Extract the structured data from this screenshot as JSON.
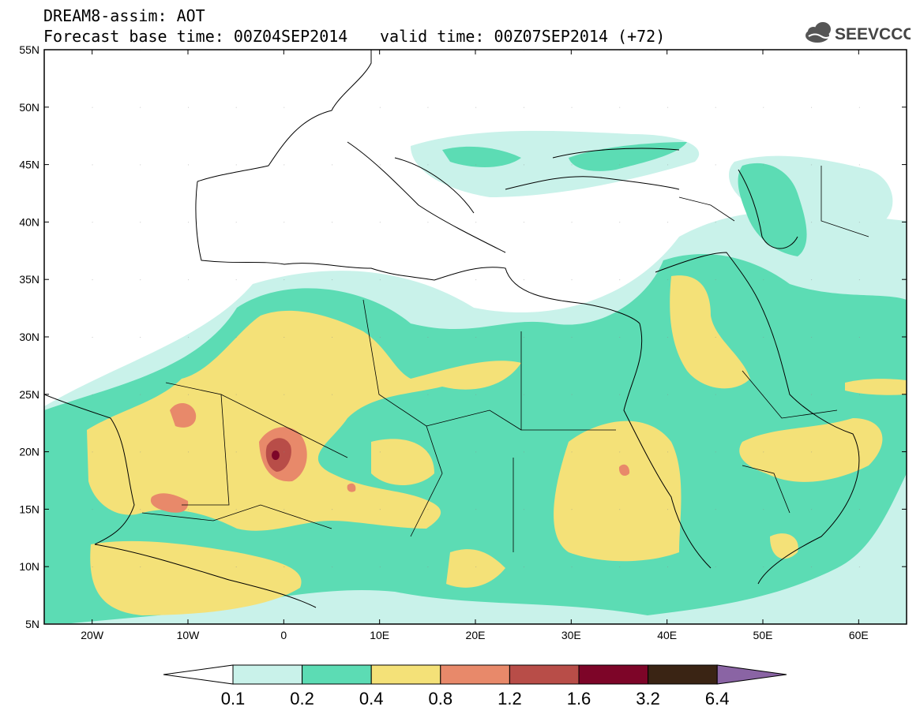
{
  "header": {
    "title": "DREAM8-assim: AOT",
    "base_time": "Forecast base time: 00Z04SEP2014",
    "valid_time": "valid time: 00Z07SEP2014 (+72)"
  },
  "logo": {
    "text": "SEEVCCC",
    "icon": "cloud-icon"
  },
  "map": {
    "region": "North Africa, Mediterranean, Middle East",
    "lon_range": [
      -25,
      65
    ],
    "lat_range": [
      5,
      55
    ],
    "lat_ticks": [
      "55N",
      "50N",
      "45N",
      "40N",
      "35N",
      "30N",
      "25N",
      "20N",
      "15N",
      "10N",
      "5N"
    ],
    "lon_ticks": [
      "20W",
      "10W",
      "0",
      "10E",
      "20E",
      "30E",
      "40E",
      "50E",
      "60E"
    ]
  },
  "colorbar": {
    "labels": [
      "0.1",
      "0.2",
      "0.4",
      "0.8",
      "1.2",
      "1.6",
      "3.2",
      "6.4"
    ],
    "colors": [
      "#c9f2ea",
      "#5cdcb4",
      "#f4e178",
      "#e8896a",
      "#b84d48",
      "#7d0528",
      "#3a2414",
      "#8a64a4"
    ]
  }
}
